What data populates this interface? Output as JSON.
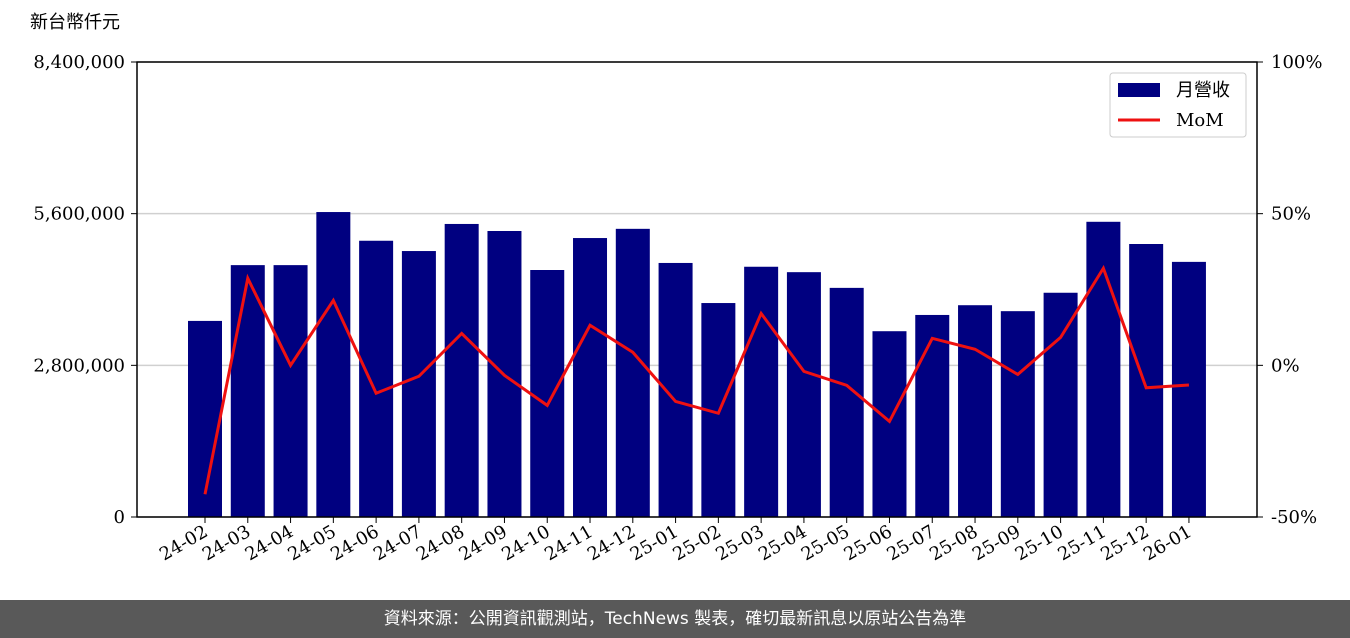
{
  "chart_data": {
    "type": "bar_line",
    "y_label": "新台幣仟元",
    "categories": [
      "24-02",
      "24-03",
      "24-04",
      "24-05",
      "24-06",
      "24-07",
      "24-08",
      "24-09",
      "24-10",
      "24-11",
      "24-12",
      "25-01",
      "25-02",
      "25-03",
      "25-04",
      "25-05",
      "25-06",
      "25-07",
      "25-08",
      "25-09",
      "25-10",
      "25-11",
      "25-12",
      "26-01"
    ],
    "series": [
      {
        "name": "月營收",
        "type": "bar",
        "color": "#000080",
        "values": [
          3620000,
          4650000,
          4650000,
          5630000,
          5100000,
          4910000,
          5410000,
          5280000,
          4560000,
          5150000,
          5320000,
          4690000,
          3950000,
          4620000,
          4520000,
          4230000,
          3430000,
          3730000,
          3910000,
          3800000,
          4140000,
          5450000,
          5040000,
          4710000
        ]
      },
      {
        "name": "MoM",
        "type": "line",
        "axis": "y2",
        "color": "#ee1111",
        "values": [
          -42.5,
          28.7,
          0,
          21.4,
          -9.2,
          -3.6,
          10.5,
          -3.3,
          -13.2,
          13.2,
          4.3,
          -11.9,
          -15.8,
          17.1,
          -2.0,
          -6.6,
          -18.5,
          8.9,
          5.3,
          -3.0,
          9.2,
          32.0,
          -7.4,
          -6.5
        ]
      }
    ],
    "ylim": [
      0,
      8400000
    ],
    "yticks": [
      {
        "value": 0,
        "label": "0"
      },
      {
        "value": 2800000,
        "label": "2,800,000"
      },
      {
        "value": 5600000,
        "label": "5,600,000"
      },
      {
        "value": 8400000,
        "label": "8,400,000"
      }
    ],
    "y2lim": [
      -50,
      100
    ],
    "y2ticks": [
      {
        "value": -50,
        "label": "-50%"
      },
      {
        "value": 0,
        "label": "0%"
      },
      {
        "value": 50,
        "label": "50%"
      },
      {
        "value": 100,
        "label": "100%"
      }
    ],
    "grid": true,
    "legend": "upper right",
    "footer": "資料來源：公開資訊觀測站，TechNews 製表，確切最新訊息以原站公告為準"
  }
}
